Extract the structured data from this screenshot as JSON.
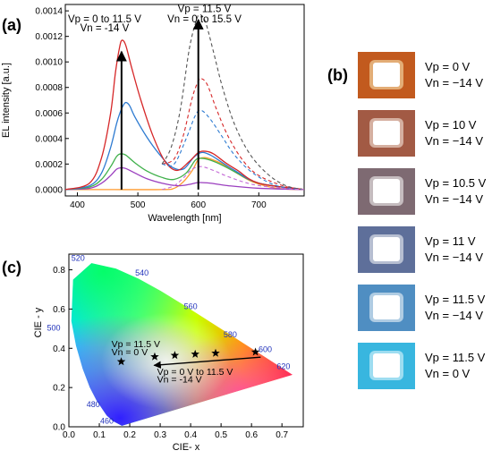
{
  "panels": {
    "a": "(a)",
    "b": "(b)",
    "c": "(c)"
  },
  "chart_data": [
    {
      "type": "line",
      "xlabel": "Wavelength [nm]",
      "ylabel": "EL intensity [a.u.]",
      "xlim": [
        380,
        775
      ],
      "ylim": [
        -5e-05,
        0.00145
      ],
      "xticks": [
        400,
        500,
        600,
        700
      ],
      "yticks": [
        0.0,
        0.0002,
        0.0004,
        0.0006,
        0.0008,
        0.001,
        0.0012,
        0.0014
      ],
      "ytick_labels": [
        "0.0000",
        "0.0002",
        "0.0004",
        "0.0006",
        "0.0008",
        "0.0010",
        "0.0012",
        "0.0014"
      ],
      "annotations": [
        {
          "text": "Vp = 0 to 11.5 V",
          "at": [
            445,
            0.00131
          ]
        },
        {
          "text": "Vn = -14 V",
          "at": [
            445,
            0.00124
          ]
        },
        {
          "text": "Vp = 11.5 V",
          "at": [
            610,
            0.00139
          ]
        },
        {
          "text": "Vn =  0 to 15.5 V",
          "at": [
            610,
            0.00131
          ]
        }
      ],
      "arrows": [
        {
          "x": 473,
          "from": 0.0,
          "to": 0.00108
        },
        {
          "x": 600,
          "from": 0.0,
          "to": 0.00133
        }
      ],
      "series": [
        {
          "color": "#ff9a2e",
          "dashed": false,
          "points": [
            [
              380,
              0
            ],
            [
              450,
              0
            ],
            [
              540,
              0
            ],
            [
              560,
              1e-05
            ],
            [
              575,
              6e-05
            ],
            [
              590,
              0.00015
            ],
            [
              600,
              0.000235
            ],
            [
              610,
              0.00025
            ],
            [
              620,
              0.00024
            ],
            [
              640,
              0.0002
            ],
            [
              660,
              0.00014
            ],
            [
              690,
              6e-05
            ],
            [
              730,
              1e-05
            ],
            [
              775,
              0
            ]
          ]
        },
        {
          "color": "#9b3fbf",
          "dashed": false,
          "points": [
            [
              380,
              0
            ],
            [
              420,
              1e-05
            ],
            [
              440,
              5e-05
            ],
            [
              455,
              0.00011
            ],
            [
              465,
              0.00016
            ],
            [
              472,
              0.00017
            ],
            [
              480,
              0.000165
            ],
            [
              495,
              0.00013
            ],
            [
              515,
              8.5e-05
            ],
            [
              540,
              5e-05
            ],
            [
              565,
              3e-05
            ],
            [
              585,
              4e-05
            ],
            [
              600,
              5.5e-05
            ],
            [
              620,
              5e-05
            ],
            [
              650,
              3e-05
            ],
            [
              700,
              1e-05
            ],
            [
              775,
              0
            ]
          ]
        },
        {
          "color": "#3fb04a",
          "dashed": false,
          "points": [
            [
              380,
              0
            ],
            [
              420,
              2e-05
            ],
            [
              440,
              8e-05
            ],
            [
              455,
              0.00018
            ],
            [
              465,
              0.00026
            ],
            [
              472,
              0.00028
            ],
            [
              480,
              0.00027
            ],
            [
              495,
              0.00021
            ],
            [
              515,
              0.000145
            ],
            [
              540,
              9.5e-05
            ],
            [
              560,
              8e-05
            ],
            [
              580,
              0.00013
            ],
            [
              595,
              0.00023
            ],
            [
              605,
              0.000245
            ],
            [
              620,
              0.00023
            ],
            [
              640,
              0.00019
            ],
            [
              660,
              0.00014
            ],
            [
              700,
              5e-05
            ],
            [
              775,
              0
            ]
          ]
        },
        {
          "color": "#2e7bd1",
          "dashed": false,
          "points": [
            [
              380,
              0
            ],
            [
              420,
              3e-05
            ],
            [
              440,
              0.00013
            ],
            [
              455,
              0.00033
            ],
            [
              465,
              0.00052
            ],
            [
              472,
              0.00062
            ],
            [
              479,
              0.00068
            ],
            [
              486,
              0.00066
            ],
            [
              495,
              0.00057
            ],
            [
              515,
              0.00041
            ],
            [
              535,
              0.00028
            ],
            [
              555,
              0.00018
            ],
            [
              575,
              0.00016
            ],
            [
              592,
              0.00025
            ],
            [
              605,
              0.00029
            ],
            [
              620,
              0.00027
            ],
            [
              640,
              0.00021
            ],
            [
              660,
              0.00015
            ],
            [
              700,
              5e-05
            ],
            [
              775,
              0
            ]
          ]
        },
        {
          "color": "#d62728",
          "dashed": false,
          "points": [
            [
              380,
              0
            ],
            [
              420,
              5e-05
            ],
            [
              440,
              0.00025
            ],
            [
              455,
              0.0006
            ],
            [
              463,
              0.00092
            ],
            [
              470,
              0.00112
            ],
            [
              474,
              0.00117
            ],
            [
              480,
              0.00113
            ],
            [
              490,
              0.00095
            ],
            [
              505,
              0.0007
            ],
            [
              525,
              0.00042
            ],
            [
              545,
              0.00022
            ],
            [
              565,
              0.00015
            ],
            [
              585,
              0.00022
            ],
            [
              600,
              0.00029
            ],
            [
              612,
              0.0003
            ],
            [
              625,
              0.00028
            ],
            [
              645,
              0.00021
            ],
            [
              665,
              0.00015
            ],
            [
              700,
              5e-05
            ],
            [
              775,
              0
            ]
          ]
        },
        {
          "color": "#d62728",
          "dashed": true,
          "points": [
            [
              540,
              0.0002
            ],
            [
              560,
              0.00024
            ],
            [
              575,
              0.00042
            ],
            [
              590,
              0.00072
            ],
            [
              600,
              0.00085
            ],
            [
              605,
              0.00087
            ],
            [
              615,
              0.00082
            ],
            [
              630,
              0.00063
            ],
            [
              650,
              0.00041
            ],
            [
              675,
              0.00022
            ],
            [
              700,
              0.00011
            ],
            [
              740,
              3e-05
            ],
            [
              775,
              0
            ]
          ]
        },
        {
          "color": "#2e7bd1",
          "dashed": true,
          "points": [
            [
              540,
              0.0002
            ],
            [
              560,
              0.0002
            ],
            [
              580,
              0.0004
            ],
            [
              595,
              0.00058
            ],
            [
              605,
              0.00062
            ],
            [
              620,
              0.00055
            ],
            [
              640,
              0.00041
            ],
            [
              660,
              0.00027
            ],
            [
              690,
              0.00013
            ],
            [
              730,
              3e-05
            ],
            [
              775,
              0
            ]
          ]
        },
        {
          "color": "#555555",
          "dashed": true,
          "points": [
            [
              540,
              0.0002
            ],
            [
              555,
              0.00033
            ],
            [
              570,
              0.00062
            ],
            [
              585,
              0.0011
            ],
            [
              597,
              0.00133
            ],
            [
              603,
              0.00137
            ],
            [
              612,
              0.00131
            ],
            [
              625,
              0.00108
            ],
            [
              640,
              0.0008
            ],
            [
              660,
              0.00051
            ],
            [
              685,
              0.00028
            ],
            [
              715,
              0.00012
            ],
            [
              745,
              3e-05
            ],
            [
              775,
              0
            ]
          ]
        },
        {
          "color": "#c46ad6",
          "dashed": true,
          "points": [
            [
              540,
              0
            ],
            [
              560,
              3e-05
            ],
            [
              575,
              9e-05
            ],
            [
              590,
              0.00016
            ],
            [
              605,
              0.00018
            ],
            [
              625,
              0.00015
            ],
            [
              650,
              0.0001
            ],
            [
              690,
              4e-05
            ],
            [
              740,
              1e-05
            ],
            [
              775,
              0
            ]
          ]
        }
      ]
    },
    {
      "type": "scatter",
      "xlabel": "CIE- x",
      "ylabel": "CIE - y",
      "xlim": [
        0.0,
        0.77
      ],
      "ylim": [
        0.0,
        0.88
      ],
      "xticks": [
        0.0,
        0.1,
        0.2,
        0.3,
        0.4,
        0.5,
        0.6,
        0.7
      ],
      "xtick_labels": [
        "0.0",
        "0.1",
        "0.2",
        "0.3",
        "0.4",
        "0.5",
        "0.6",
        "0.7"
      ],
      "yticks": [
        0.0,
        0.2,
        0.4,
        0.6,
        0.8
      ],
      "ytick_labels": [
        "0.0",
        "0.2",
        "0.4",
        "0.6",
        "0.8"
      ],
      "wavelength_labels": [
        {
          "text": "520",
          "x": 0.03,
          "y": 0.845
        },
        {
          "text": "540",
          "x": 0.24,
          "y": 0.77
        },
        {
          "text": "560",
          "x": 0.4,
          "y": 0.6
        },
        {
          "text": "580",
          "x": 0.53,
          "y": 0.455
        },
        {
          "text": "600",
          "x": 0.645,
          "y": 0.38
        },
        {
          "text": "620",
          "x": 0.705,
          "y": 0.295
        },
        {
          "text": "500",
          "x": -0.05,
          "y": 0.49
        },
        {
          "text": "480",
          "x": 0.08,
          "y": 0.1
        },
        {
          "text": "460",
          "x": 0.125,
          "y": 0.015
        }
      ],
      "points": [
        {
          "x": 0.172,
          "y": 0.332
        },
        {
          "x": 0.282,
          "y": 0.357
        },
        {
          "x": 0.348,
          "y": 0.364
        },
        {
          "x": 0.415,
          "y": 0.37
        },
        {
          "x": 0.482,
          "y": 0.375
        },
        {
          "x": 0.613,
          "y": 0.381
        }
      ],
      "annotations": [
        {
          "text": "Vp = 11.5 V",
          "at": [
            0.14,
            0.405
          ]
        },
        {
          "text": "Vn = 0 V",
          "at": [
            0.14,
            0.365
          ]
        },
        {
          "text": "Vp = 0 V to 11.5 V",
          "at": [
            0.29,
            0.265
          ]
        },
        {
          "text": "Vn = -14 V",
          "at": [
            0.29,
            0.225
          ]
        }
      ],
      "arrow": {
        "from": [
          0.63,
          0.355
        ],
        "to": [
          0.28,
          0.313
        ]
      }
    }
  ],
  "photos": [
    {
      "vp": "Vp = 0 V",
      "vn": "Vn = −14 V",
      "bg": "#c25a1e",
      "glow": "#fff3c0"
    },
    {
      "vp": "Vp = 10 V",
      "vn": "Vn = −14 V",
      "bg": "#a25a44",
      "glow": "#fff6ec"
    },
    {
      "vp": "Vp = 10.5 V",
      "vn": "Vn = −14 V",
      "bg": "#7e6a72",
      "glow": "#ffffff"
    },
    {
      "vp": "Vp = 11 V",
      "vn": "Vn = −14 V",
      "bg": "#5e6f9a",
      "glow": "#ffffff"
    },
    {
      "vp": "Vp = 11.5 V",
      "vn": "Vn = −14 V",
      "bg": "#4f8ec2",
      "glow": "#ffffff"
    },
    {
      "vp": "Vp = 11.5 V",
      "vn": "Vn = 0 V",
      "bg": "#38b6df",
      "glow": "#f0fdff"
    }
  ]
}
